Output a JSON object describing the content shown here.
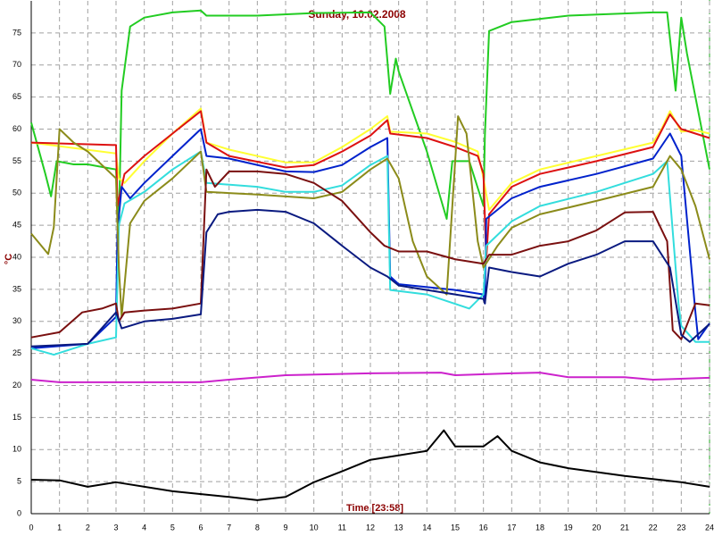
{
  "chart_data": {
    "type": "line",
    "title": "Sunday, 10.02.2008",
    "xlabel": "Time [23:58]",
    "ylabel": "°C",
    "xlim": [
      0,
      24
    ],
    "ylim": [
      0,
      80
    ],
    "xticks": [
      0,
      1,
      2,
      3,
      4,
      5,
      6,
      7,
      8,
      9,
      10,
      11,
      12,
      13,
      14,
      15,
      16,
      17,
      18,
      19,
      20,
      21,
      22,
      23,
      24
    ],
    "yticks": [
      0,
      5,
      10,
      15,
      20,
      25,
      30,
      35,
      40,
      45,
      50,
      55,
      60,
      65,
      70,
      75
    ],
    "grid": true,
    "series": [
      {
        "color": "#22cc22",
        "x": [
          0,
          0.5,
          0.7,
          0.9,
          1.5,
          2,
          3,
          3.1,
          3.2,
          3.5,
          4,
          5,
          6,
          6.2,
          8,
          10,
          12,
          12.5,
          12.7,
          12.9,
          13,
          14,
          14.7,
          14.9,
          15.5,
          16,
          16.05,
          16.2,
          17,
          19,
          22,
          22.5,
          22.8,
          23,
          23.2,
          24
        ],
        "values": [
          61,
          53,
          49.5,
          55,
          54.5,
          54.5,
          53.7,
          45,
          66,
          76,
          77.4,
          78.2,
          78.5,
          77.7,
          77.7,
          78.1,
          78.2,
          76,
          65.5,
          71,
          69,
          56.5,
          46,
          55,
          55,
          48,
          59,
          75.3,
          76.7,
          77.7,
          78.2,
          78.2,
          66,
          77.4,
          71.8,
          53.7
        ]
      },
      {
        "color": "#ffff33",
        "x": [
          0,
          3,
          3.1,
          3.3,
          4,
          5,
          6,
          6.2,
          7,
          9,
          10,
          11,
          12,
          12.6,
          12.7,
          14,
          15,
          15.8,
          16,
          16.2,
          17,
          18,
          20,
          22,
          22.3,
          22.6,
          23,
          23.5,
          24
        ],
        "values": [
          57.9,
          56.2,
          52.3,
          51.6,
          55,
          59.3,
          63.2,
          57.9,
          56.8,
          54.8,
          54.8,
          57.2,
          60,
          62,
          59.6,
          59.3,
          58,
          56.5,
          52.3,
          47.4,
          51.6,
          53.7,
          55.8,
          57.9,
          60,
          62.8,
          59.6,
          59.8,
          59.3
        ]
      },
      {
        "color": "#dd1111",
        "x": [
          0,
          3,
          3.05,
          3.3,
          4,
          5,
          6,
          6.2,
          7,
          9,
          10,
          11,
          12,
          12.6,
          12.7,
          14,
          15,
          15.8,
          16,
          16.1,
          16.2,
          17,
          18,
          20,
          22,
          22.6,
          23,
          24
        ],
        "values": [
          57.9,
          57.5,
          48,
          53,
          55.8,
          59.3,
          62.8,
          57.9,
          55.8,
          54,
          54.4,
          56.5,
          59,
          61.4,
          59.3,
          58.6,
          57.2,
          55.8,
          53,
          39.7,
          46.7,
          51,
          53,
          55,
          57.2,
          62.3,
          60,
          58.6
        ]
      },
      {
        "color": "#0022cc",
        "x": [
          0,
          2,
          3,
          3.05,
          3.2,
          3.5,
          4,
          5,
          6,
          6.2,
          7,
          9,
          10,
          11,
          12,
          12.6,
          12.7,
          13,
          15,
          16,
          16.05,
          16.1,
          17,
          18,
          20,
          22,
          22.6,
          23,
          23.5,
          23.6,
          24
        ],
        "values": [
          25.8,
          26.5,
          30.7,
          43.9,
          51,
          49.2,
          51.6,
          55.8,
          60,
          55.8,
          55.4,
          53.4,
          53.3,
          54.4,
          57.2,
          58.6,
          37,
          35.8,
          34.9,
          34.2,
          32.8,
          46,
          49.2,
          51,
          53,
          55.4,
          59.3,
          55.8,
          31.4,
          27.2,
          29.7
        ]
      },
      {
        "color": "#33dddd",
        "x": [
          0,
          0.8,
          2,
          3,
          3.1,
          3.3,
          4,
          5,
          6,
          6.2,
          8,
          9,
          10,
          11,
          12,
          12.6,
          12.7,
          14,
          15.5,
          16,
          16.1,
          17,
          18,
          20,
          22,
          22.5,
          22.9,
          23,
          23.5,
          24
        ],
        "values": [
          25.8,
          24.8,
          26.5,
          27.5,
          45,
          48.4,
          50.2,
          53.7,
          56.5,
          51.6,
          51,
          50.2,
          50.2,
          51.2,
          54.4,
          55.8,
          34.9,
          34.2,
          32,
          34.2,
          41.8,
          45.6,
          48,
          50.2,
          53,
          55,
          32.8,
          29.3,
          26.8,
          26.8
        ]
      },
      {
        "color": "#8b8b1a",
        "x": [
          0,
          0.6,
          0.8,
          1,
          1.5,
          2,
          3,
          3.1,
          3.2,
          3.5,
          4,
          5,
          6,
          6.2,
          8,
          10,
          11,
          12,
          12.6,
          13,
          13.5,
          14,
          14.7,
          15.1,
          15.4,
          15.8,
          16,
          16.5,
          17,
          18,
          20,
          22,
          22.6,
          23,
          23.5,
          24
        ],
        "values": [
          43.7,
          40.5,
          44.7,
          60,
          57.9,
          56.5,
          52.3,
          38.4,
          30.7,
          45.3,
          48.8,
          52.3,
          56.5,
          50.2,
          49.8,
          49.2,
          50.2,
          53.7,
          55.4,
          52.3,
          42.5,
          37,
          34.2,
          62,
          59.3,
          42.5,
          38.4,
          41.8,
          44.6,
          46.7,
          48.8,
          51,
          55.8,
          53.7,
          48,
          39.7
        ]
      },
      {
        "color": "#7a1010",
        "x": [
          0,
          1,
          1.8,
          2.5,
          3,
          3.1,
          3.3,
          4,
          5,
          6,
          6.2,
          6.5,
          7,
          8,
          9,
          10,
          11,
          12,
          12.5,
          13,
          14,
          15,
          16,
          16.2,
          17,
          18,
          19,
          20,
          21,
          22,
          22.5,
          22.7,
          23,
          23.5,
          24
        ],
        "values": [
          27.5,
          28.3,
          31.4,
          32,
          32.8,
          30,
          31.4,
          31.7,
          32,
          32.8,
          53.7,
          51,
          53.4,
          53.4,
          53,
          51.6,
          48.8,
          43.9,
          41.8,
          40.9,
          40.9,
          39.7,
          39,
          40.4,
          40.4,
          41.8,
          42.5,
          44.2,
          47,
          47.1,
          42.5,
          28.6,
          27.2,
          32.8,
          32.5
        ]
      },
      {
        "color": "#0a1a80",
        "x": [
          0,
          2,
          3,
          3.2,
          4,
          5,
          6,
          6.2,
          6.6,
          7,
          8,
          9,
          10,
          11,
          12,
          12.6,
          13,
          14,
          15,
          16,
          16.05,
          16.2,
          17,
          18,
          19,
          20,
          21,
          22,
          22.6,
          23,
          23.3,
          24
        ],
        "values": [
          26.1,
          26.5,
          31.4,
          28.9,
          30,
          30.4,
          31.1,
          43.9,
          46.7,
          47.1,
          47.4,
          47.1,
          45.3,
          41.8,
          38.4,
          37,
          35.6,
          34.9,
          34.2,
          33.5,
          32.8,
          38.4,
          37.7,
          37,
          39,
          40.4,
          42.5,
          42.5,
          38.4,
          27.9,
          26.8,
          29.6
        ]
      },
      {
        "color": "#cc22cc",
        "x": [
          0,
          1,
          6,
          7,
          9,
          12,
          14.5,
          15,
          17,
          18,
          19,
          21,
          22,
          24
        ],
        "values": [
          20.9,
          20.5,
          20.5,
          20.9,
          21.6,
          21.9,
          22,
          21.6,
          21.9,
          22,
          21.3,
          21.3,
          20.9,
          21.2
        ]
      },
      {
        "color": "#000000",
        "x": [
          0,
          1,
          2,
          3,
          5,
          7,
          8,
          9,
          10,
          11,
          12,
          13,
          14,
          14.6,
          15,
          16,
          16.5,
          17,
          18,
          19,
          21,
          23,
          24
        ],
        "values": [
          5.3,
          5.2,
          4.2,
          4.9,
          3.5,
          2.6,
          2.1,
          2.6,
          4.9,
          6.6,
          8.4,
          9.1,
          9.8,
          13,
          10.5,
          10.5,
          12.1,
          9.8,
          8,
          7.1,
          5.9,
          4.9,
          4.2
        ]
      }
    ]
  }
}
